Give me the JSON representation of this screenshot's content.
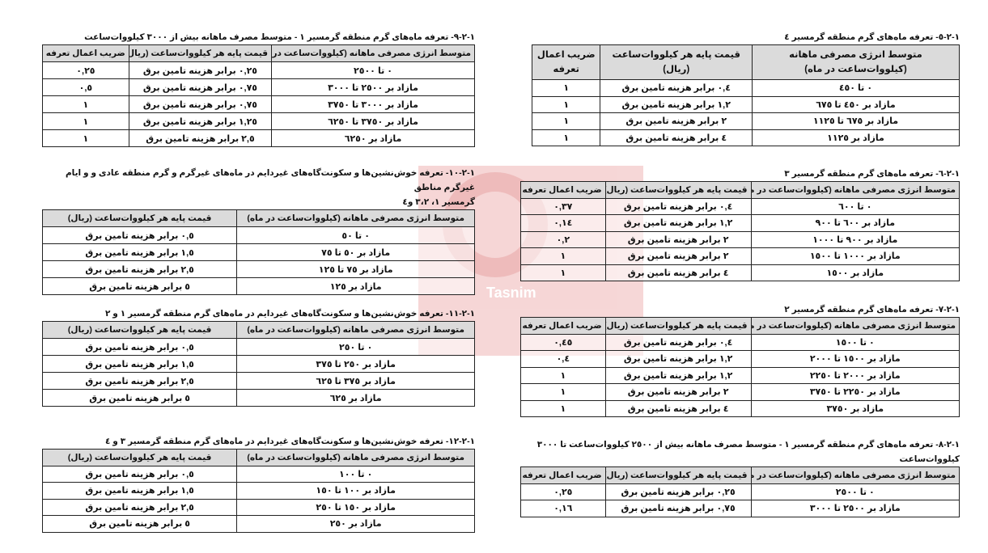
{
  "watermark": {
    "text": "Tasnim",
    "color": "#e9a5a5"
  },
  "tables": [
    {
      "id": "t9",
      "title": [
        "١-٢-٩- تعرفه ماه‌های گرم منطقه گرمسیر ١ - متوسط مصرف ماهانه بیش از ٣٠٠٠ کیلووات‌ساعت"
      ],
      "headers": [
        "متوسط انرژی مصرفی ماهانه (کیلووات‌ساعت در ماه)",
        "قیمت پایه هر کیلووات‌ساعت (ریال)",
        "ضریب اعمال تعرفه"
      ],
      "rows": [
        [
          "٠ تا ٢٥٠٠",
          "٠,٢٥ برابر هزینه تامین برق",
          "٠,٢٥"
        ],
        [
          "مازاد بر ٢٥٠٠ تا ٣٠٠٠",
          "٠,٧٥ برابر هزینه تامین برق",
          "٠,٥"
        ],
        [
          "مازاد بر ٣٠٠٠ تا ٣٧٥٠",
          "٠,٧٥ برابر هزینه تامین برق",
          "١"
        ],
        [
          "مازاد بر ٣٧٥٠ تا ٦٢٥٠",
          "١,٢٥ برابر هزینه تامین برق",
          "١"
        ],
        [
          "مازاد بر ٦٢٥٠",
          "٢,٥ برابر هزینه تامین برق",
          "١"
        ]
      ]
    },
    {
      "id": "t10",
      "title": [
        "١-٢-١٠- تعرفه خوش‌نشین‌ها و سکونت‌گاه‌های غیردایم در ماه‌های غیرگرم و گرم منطقه عادی و و ایام غیرگرم مناطق",
        "گرمسیر ١، ٣،٢ و٤"
      ],
      "headers": [
        "متوسط انرژی مصرفی ماهانه (کیلووات‌ساعت در ماه)",
        "قیمت پایه هر کیلووات‌ساعت (ریال)"
      ],
      "rows": [
        [
          "٠ تا ٥٠",
          "٠,٥ برابر هزینه تامین برق"
        ],
        [
          "مازاد بر ٥٠ تا ٧٥",
          "١,٥ برابر هزینه تامین برق"
        ],
        [
          "مازاد بر ٧٥ تا ١٢٥",
          "٢,٥ برابر هزینه تامین برق"
        ],
        [
          "مازاد بر ١٢٥",
          "٥ برابر هزینه تامین برق"
        ]
      ]
    },
    {
      "id": "t11",
      "title": [
        "١-٢-١١- تعرفه خوش‌نشین‌ها و سکونت‌گاه‌های غیردایم در ماه‌های گرم منطقه گرمسیر ١ و ٢"
      ],
      "headers": [
        "متوسط انرژی مصرفی ماهانه (کیلووات‌ساعت در ماه)",
        "قیمت پایه هر کیلووات‌ساعت (ریال)"
      ],
      "rows": [
        [
          "٠ تا ٢٥٠",
          "٠,٥ برابر هزینه تامین برق"
        ],
        [
          "مازاد بر ٢٥٠ تا ٣٧٥",
          "١,٥ برابر هزینه تامین برق"
        ],
        [
          "مازاد بر ٣٧٥ تا ٦٢٥",
          "٢,٥ برابر هزینه تامین برق"
        ],
        [
          "مازاد بر ٦٢٥",
          "٥ برابر هزینه تامین برق"
        ]
      ]
    },
    {
      "id": "t12",
      "title": [
        "١-٢-١٢- تعرفه خوش‌نشین‌ها و سکونت‌گاه‌های غیردایم در ماه‌های گرم منطقه گرمسیر ٣ و ٤"
      ],
      "headers": [
        "متوسط انرژی مصرفی ماهانه (کیلووات‌ساعت در ماه)",
        "قیمت پایه هر کیلووات‌ساعت (ریال)"
      ],
      "rows": [
        [
          "٠ تا ١٠٠",
          "٠,٥ برابر هزینه تامین برق"
        ],
        [
          "مازاد بر ١٠٠ تا ١٥٠",
          "١,٥ برابر هزینه تامین برق"
        ],
        [
          "مازاد بر ١٥٠ تا ٢٥٠",
          "٢,٥ برابر هزینه تامین برق"
        ],
        [
          "مازاد بر ٢٥٠",
          "٥ برابر هزینه تامین برق"
        ]
      ]
    },
    {
      "id": "t5",
      "title": [
        "١-٢-٥- تعرفه ماه‌های گرم منطقه گرمسیر ٤"
      ],
      "headers": [
        "متوسط انرژی مصرفی ماهانه (کیلووات‌ساعت در ماه)",
        "قیمت پایه هر کیلووات‌ساعت (ریال)",
        "ضریب اعمال تعرفه"
      ],
      "rows": [
        [
          "٠ تا ٤٥٠",
          "٠,٤ برابر هزینه تامین برق",
          "١"
        ],
        [
          "مازاد بر ٤٥٠ تا ٦٧٥",
          "١,٢ برابر هزینه تامین برق",
          "١"
        ],
        [
          "مازاد بر ٦٧٥ تا ١١٢٥",
          "٢ برابر هزینه تامین برق",
          "١"
        ],
        [
          "مازاد بر ١١٢٥",
          "٤ برابر هزینه تامین برق",
          "١"
        ]
      ]
    },
    {
      "id": "t6",
      "title": [
        "١-٢-٦- تعرفه ماه‌های گرم منطقه گرمسیر ٣"
      ],
      "headers": [
        "متوسط انرژی مصرفی ماهانه (کیلووات‌ساعت در ماه)",
        "قیمت پایه هر کیلووات‌ساعت (ریال)",
        "ضریب اعمال تعرفه"
      ],
      "rows": [
        [
          "٠ تا ٦٠٠",
          "٠,٤ برابر هزینه تامین برق",
          "٠,٣٧"
        ],
        [
          "مازاد بر ٦٠٠ تا ٩٠٠",
          "١,٢ برابر هزینه تامین برق",
          "٠,١٤"
        ],
        [
          "مازاد بر ٩٠٠ تا ١٠٠٠",
          "٢ برابر هزینه تامین برق",
          "٠,٢"
        ],
        [
          "مازاد بر ١٠٠٠ تا ١٥٠٠",
          "٢ برابر هزینه تامین برق",
          "١"
        ],
        [
          "مازاد بر ١٥٠٠",
          "٤ برابر هزینه تامین برق",
          "١"
        ]
      ]
    },
    {
      "id": "t7",
      "title": [
        "١-٢-٧- تعرفه ماه‌های گرم منطقه گرمسیر ٢"
      ],
      "headers": [
        "متوسط انرژی مصرفی ماهانه (کیلووات‌ساعت در ماه)",
        "قیمت پایه هر کیلووات‌ساعت (ریال)",
        "ضریب اعمال تعرفه"
      ],
      "rows": [
        [
          "٠ تا ١٥٠٠",
          "٠,٤ برابر هزینه تامین برق",
          "٠,٤٥"
        ],
        [
          "مازاد بر ١٥٠٠ تا ٢٠٠٠",
          "١,٢ برابر هزینه تامین برق",
          "٠,٤"
        ],
        [
          "مازاد بر ٢٠٠٠ تا ٢٢٥٠",
          "١,٢ برابر هزینه تامین برق",
          "١"
        ],
        [
          "مازاد بر ٢٢٥٠ تا ٣٧٥٠",
          "٢ برابر هزینه تامین برق",
          "١"
        ],
        [
          "مازاد بر ٣٧٥٠",
          "٤ برابر هزینه تامین برق",
          "١"
        ]
      ]
    },
    {
      "id": "t8",
      "title": [
        "١-٢-٨- تعرفه ماه‌های گرم منطقه گرمسیر ١ - متوسط مصرف ماهانه بیش از ٢٥٠٠ کیلووات‌ساعت تا ٣٠٠٠ کیلووات‌ساعت"
      ],
      "headers": [
        "متوسط انرژی مصرفی ماهانه (کیلووات‌ساعت در ماه)",
        "قیمت پایه هر کیلووات‌ساعت (ریال)",
        "ضریب اعمال تعرفه"
      ],
      "rows": [
        [
          "٠ تا ٢٥٠٠",
          "٠,٢٥ برابر هزینه تامین برق",
          "٠,٢٥"
        ],
        [
          "مازاد بر ٢٥٠٠ تا ٣٠٠٠",
          "٠,٧٥ برابر هزینه تامین برق",
          "٠,١٦"
        ]
      ]
    }
  ]
}
